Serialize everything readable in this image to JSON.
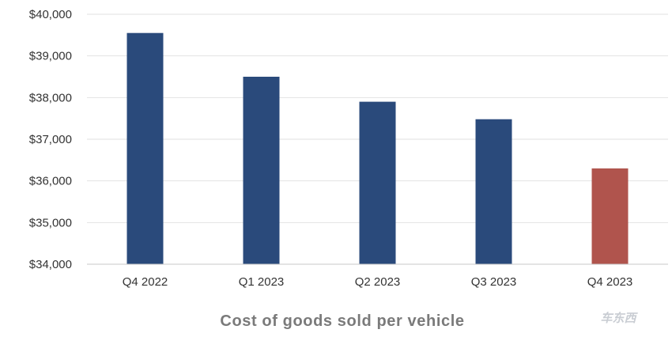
{
  "chart_data": {
    "type": "bar",
    "title": "Cost of goods sold per vehicle",
    "categories": [
      "Q4 2022",
      "Q1 2023",
      "Q2 2023",
      "Q3 2023",
      "Q4 2023"
    ],
    "values": [
      39550,
      38500,
      37900,
      37480,
      36300
    ],
    "ylim": [
      34000,
      40000
    ],
    "y_ticks": [
      34000,
      35000,
      36000,
      37000,
      38000,
      39000,
      40000
    ],
    "y_tick_labels": [
      "$34,000",
      "$35,000",
      "$36,000",
      "$37,000",
      "$38,000",
      "$39,000",
      "$40,000"
    ],
    "grid": true,
    "colors": {
      "bar": "#2a4a7b",
      "highlight_bar": "#b0544d",
      "grid": "#e2e2e2",
      "axis": "#c8c8c8"
    },
    "highlight_index": 4
  },
  "watermark": {
    "text": "车东西"
  }
}
